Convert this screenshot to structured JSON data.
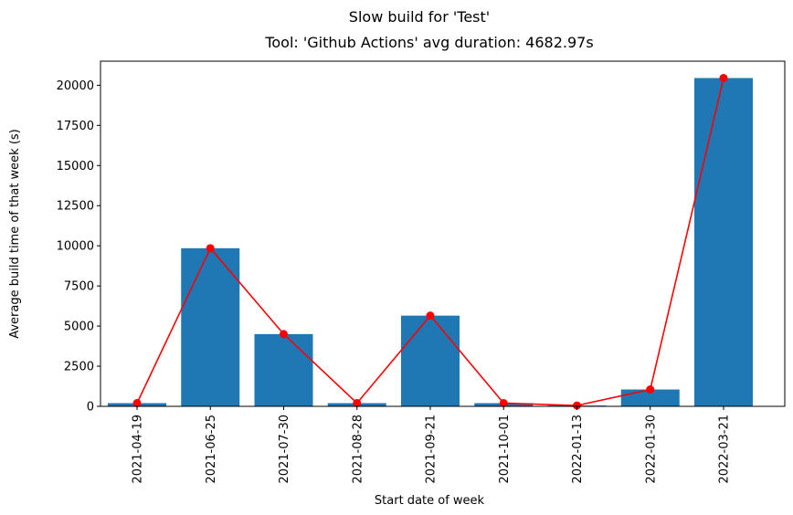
{
  "figure": {
    "suptitle": "Slow build for 'Test'"
  },
  "chart_data": {
    "type": "bar",
    "title": "Tool: 'Github Actions' avg duration: 4682.97s",
    "xlabel": "Start date of week",
    "ylabel": "Average build time of that week (s)",
    "categories": [
      "2021-04-19",
      "2021-06-25",
      "2021-07-30",
      "2021-08-28",
      "2021-09-21",
      "2021-10-01",
      "2022-01-13",
      "2022-01-30",
      "2022-03-21"
    ],
    "values": [
      200,
      9850,
      4500,
      200,
      5650,
      200,
      50,
      1050,
      20450
    ],
    "line_values": [
      200,
      9850,
      4500,
      200,
      5650,
      200,
      50,
      1050,
      20450
    ],
    "ylim": [
      0,
      21500
    ],
    "yticks": [
      0,
      2500,
      5000,
      7500,
      10000,
      12500,
      15000,
      17500,
      20000
    ],
    "grid": false,
    "bar_color": "#1f77b4",
    "line_color": "#ff0000"
  }
}
